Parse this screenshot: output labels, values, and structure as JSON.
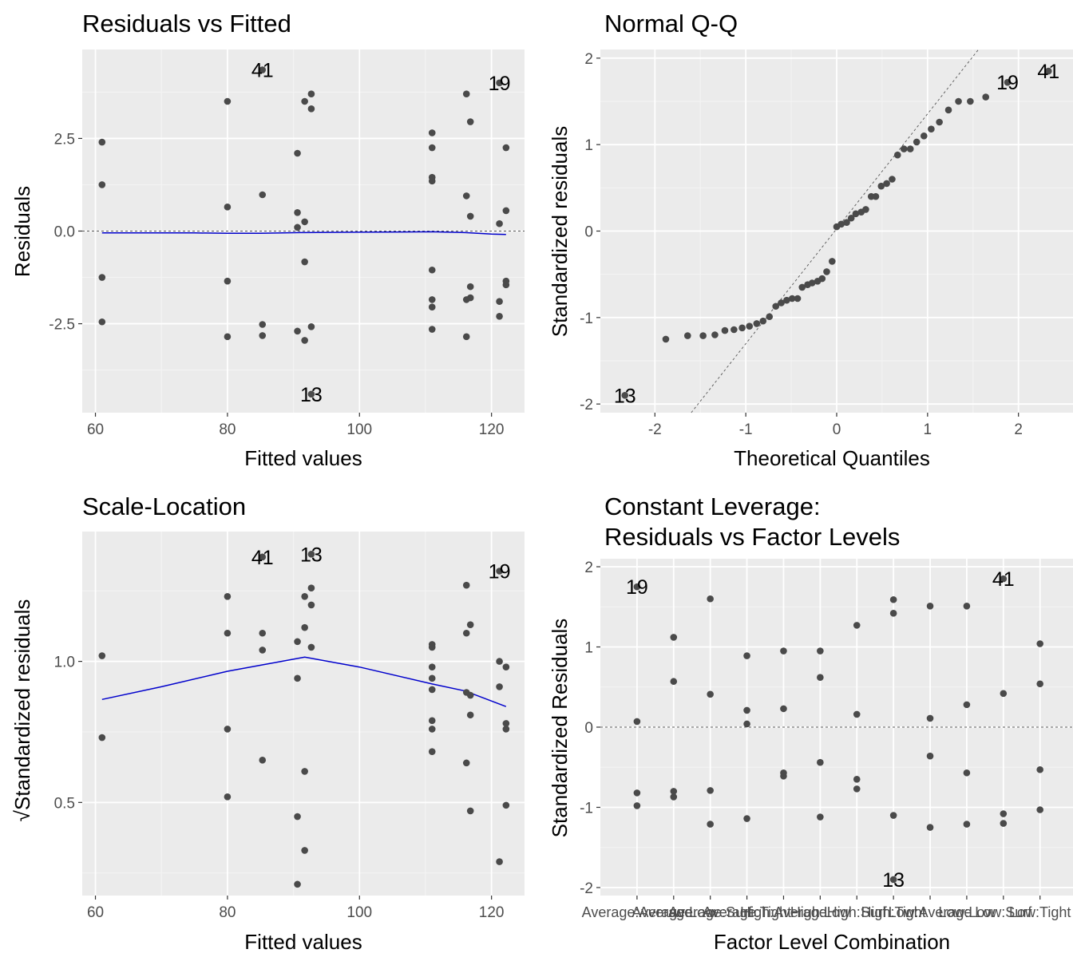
{
  "chart_data": [
    {
      "type": "scatter",
      "id": "p1",
      "title": "Residuals vs Fitted",
      "xlabel": "Fitted values",
      "ylabel": "Residuals",
      "xlim": [
        58,
        125
      ],
      "ylim": [
        -4.9,
        4.9
      ],
      "xticks": [
        60,
        80,
        100,
        120
      ],
      "xtick_labels": [
        "60",
        "80",
        "100",
        "120"
      ],
      "yticks": [
        -2.5,
        0,
        2.5
      ],
      "ytick_labels": [
        "-2.5",
        "0.0",
        "2.5"
      ],
      "hline": 0,
      "points": [
        [
          61,
          2.4
        ],
        [
          61,
          1.25
        ],
        [
          61,
          -1.25
        ],
        [
          61,
          -2.45
        ],
        [
          80,
          3.5
        ],
        [
          80,
          0.65
        ],
        [
          80,
          -1.35
        ],
        [
          80,
          -2.85
        ],
        [
          85.3,
          4.35
        ],
        [
          85.3,
          0.98
        ],
        [
          85.3,
          -2.52
        ],
        [
          85.3,
          -2.82
        ],
        [
          90.6,
          2.1
        ],
        [
          90.6,
          0.5
        ],
        [
          90.6,
          0.1
        ],
        [
          90.6,
          -2.7
        ],
        [
          91.7,
          3.5
        ],
        [
          91.7,
          0.25
        ],
        [
          91.7,
          -0.83
        ],
        [
          91.7,
          -2.95
        ],
        [
          92.7,
          3.7
        ],
        [
          92.7,
          3.3
        ],
        [
          92.7,
          -2.58
        ],
        [
          92.7,
          -4.4
        ],
        [
          111,
          2.65
        ],
        [
          111,
          2.25
        ],
        [
          111,
          1.45
        ],
        [
          111,
          1.35
        ],
        [
          111,
          -1.05
        ],
        [
          111,
          -1.85
        ],
        [
          111,
          -2.05
        ],
        [
          111,
          -2.65
        ],
        [
          116.2,
          3.7
        ],
        [
          116.2,
          0.95
        ],
        [
          116.2,
          -1.85
        ],
        [
          116.2,
          -2.85
        ],
        [
          116.8,
          2.95
        ],
        [
          116.8,
          0.4
        ],
        [
          116.8,
          -1.5
        ],
        [
          116.8,
          -1.8
        ],
        [
          121.2,
          4.0
        ],
        [
          121.2,
          0.2
        ],
        [
          121.2,
          -1.9
        ],
        [
          121.2,
          -2.3
        ],
        [
          122.2,
          2.25
        ],
        [
          122.2,
          0.55
        ],
        [
          122.2,
          -1.35
        ],
        [
          122.2,
          -1.45
        ]
      ],
      "point_labels": [
        {
          "x": 85.3,
          "y": 4.35,
          "text": "41"
        },
        {
          "x": 121.2,
          "y": 4.0,
          "text": "19"
        },
        {
          "x": 92.7,
          "y": -4.4,
          "text": "13"
        }
      ],
      "smooth": [
        [
          61,
          -0.05
        ],
        [
          75,
          -0.05
        ],
        [
          80,
          -0.06
        ],
        [
          85,
          -0.06
        ],
        [
          91,
          -0.04
        ],
        [
          100,
          -0.03
        ],
        [
          111,
          -0.02
        ],
        [
          116,
          -0.04
        ],
        [
          120,
          -0.08
        ],
        [
          122.2,
          -0.09
        ]
      ]
    },
    {
      "type": "scatter",
      "id": "p2",
      "title": "Normal Q-Q",
      "xlabel": "Theoretical Quantiles",
      "ylabel": "Standardized residuals",
      "xlim": [
        -2.6,
        2.6
      ],
      "ylim": [
        -2.1,
        2.1
      ],
      "xticks": [
        -2,
        -1,
        0,
        1,
        2
      ],
      "xtick_labels": [
        "-2",
        "-1",
        "0",
        "1",
        "2"
      ],
      "yticks": [
        -2,
        -1,
        0,
        1,
        2
      ],
      "ytick_labels": [
        "-2",
        "-1",
        "0",
        "1",
        "2"
      ],
      "refline": [
        [
          -1.6,
          -2.1
        ],
        [
          1.56,
          2.1
        ]
      ],
      "points": [
        [
          -2.33,
          -1.9
        ],
        [
          -1.88,
          -1.25
        ],
        [
          -1.64,
          -1.21
        ],
        [
          -1.47,
          -1.21
        ],
        [
          -1.34,
          -1.2
        ],
        [
          -1.23,
          -1.15
        ],
        [
          -1.13,
          -1.14
        ],
        [
          -1.04,
          -1.12
        ],
        [
          -0.96,
          -1.1
        ],
        [
          -0.88,
          -1.07
        ],
        [
          -0.81,
          -1.04
        ],
        [
          -0.74,
          -0.99
        ],
        [
          -0.67,
          -0.87
        ],
        [
          -0.61,
          -0.83
        ],
        [
          -0.55,
          -0.8
        ],
        [
          -0.49,
          -0.78
        ],
        [
          -0.43,
          -0.78
        ],
        [
          -0.38,
          -0.65
        ],
        [
          -0.32,
          -0.62
        ],
        [
          -0.27,
          -0.6
        ],
        [
          -0.21,
          -0.58
        ],
        [
          -0.16,
          -0.55
        ],
        [
          -0.11,
          -0.47
        ],
        [
          -0.05,
          -0.35
        ],
        [
          0.0,
          0.05
        ],
        [
          0.05,
          0.08
        ],
        [
          0.11,
          0.1
        ],
        [
          0.16,
          0.15
        ],
        [
          0.21,
          0.2
        ],
        [
          0.27,
          0.22
        ],
        [
          0.32,
          0.25
        ],
        [
          0.38,
          0.4
        ],
        [
          0.43,
          0.4
        ],
        [
          0.49,
          0.52
        ],
        [
          0.55,
          0.55
        ],
        [
          0.61,
          0.6
        ],
        [
          0.67,
          0.88
        ],
        [
          0.74,
          0.95
        ],
        [
          0.81,
          0.95
        ],
        [
          0.88,
          1.03
        ],
        [
          0.96,
          1.1
        ],
        [
          1.04,
          1.18
        ],
        [
          1.13,
          1.26
        ],
        [
          1.23,
          1.4
        ],
        [
          1.34,
          1.5
        ],
        [
          1.47,
          1.5
        ],
        [
          1.64,
          1.55
        ],
        [
          1.88,
          1.72
        ],
        [
          2.33,
          1.85
        ]
      ],
      "point_labels": [
        {
          "x": 2.33,
          "y": 1.85,
          "text": "41"
        },
        {
          "x": 1.88,
          "y": 1.72,
          "text": "19"
        },
        {
          "x": -2.33,
          "y": -1.9,
          "text": "13"
        }
      ]
    },
    {
      "type": "scatter",
      "id": "p3",
      "title": "Scale-Location",
      "xlabel": "Fitted values",
      "ylabel": "√Standardized residuals",
      "xlim": [
        58,
        125
      ],
      "ylim": [
        0.17,
        1.46
      ],
      "xticks": [
        60,
        80,
        100,
        120
      ],
      "xtick_labels": [
        "60",
        "80",
        "100",
        "120"
      ],
      "yticks": [
        0.5,
        1.0
      ],
      "ytick_labels": [
        "0.5",
        "1.0"
      ],
      "points": [
        [
          61,
          1.02
        ],
        [
          61,
          0.73
        ],
        [
          80,
          1.23
        ],
        [
          80,
          1.1
        ],
        [
          80,
          0.76
        ],
        [
          80,
          0.52
        ],
        [
          85.3,
          1.37
        ],
        [
          85.3,
          1.1
        ],
        [
          85.3,
          1.04
        ],
        [
          85.3,
          0.65
        ],
        [
          90.6,
          1.07
        ],
        [
          90.6,
          0.94
        ],
        [
          90.6,
          0.45
        ],
        [
          90.6,
          0.21
        ],
        [
          91.7,
          1.23
        ],
        [
          91.7,
          1.12
        ],
        [
          91.7,
          0.61
        ],
        [
          91.7,
          0.33
        ],
        [
          92.7,
          1.38
        ],
        [
          92.7,
          1.26
        ],
        [
          92.7,
          1.2
        ],
        [
          92.7,
          1.05
        ],
        [
          111,
          1.06
        ],
        [
          111,
          1.05
        ],
        [
          111,
          0.98
        ],
        [
          111,
          0.94
        ],
        [
          111,
          0.9
        ],
        [
          111,
          0.79
        ],
        [
          111,
          0.76
        ],
        [
          111,
          0.68
        ],
        [
          116.2,
          1.27
        ],
        [
          116.2,
          1.1
        ],
        [
          116.2,
          0.89
        ],
        [
          116.2,
          0.64
        ],
        [
          116.8,
          1.13
        ],
        [
          116.8,
          0.88
        ],
        [
          116.8,
          0.81
        ],
        [
          116.8,
          0.47
        ],
        [
          121.2,
          1.32
        ],
        [
          121.2,
          1.0
        ],
        [
          121.2,
          0.91
        ],
        [
          121.2,
          0.29
        ],
        [
          122.2,
          0.98
        ],
        [
          122.2,
          0.78
        ],
        [
          122.2,
          0.76
        ],
        [
          122.2,
          0.49
        ]
      ],
      "point_labels": [
        {
          "x": 85.3,
          "y": 1.37,
          "text": "41"
        },
        {
          "x": 92.7,
          "y": 1.38,
          "text": "13"
        },
        {
          "x": 121.2,
          "y": 1.32,
          "text": "19"
        }
      ],
      "smooth": [
        [
          61,
          0.865
        ],
        [
          70,
          0.91
        ],
        [
          80,
          0.965
        ],
        [
          91.7,
          1.015
        ],
        [
          100,
          0.98
        ],
        [
          111,
          0.92
        ],
        [
          116,
          0.895
        ],
        [
          122.2,
          0.84
        ]
      ]
    },
    {
      "type": "scatter",
      "id": "p4",
      "title": "Constant Leverage:",
      "subtitle": "Residuals vs Factor Levels",
      "xlabel": "Factor Level Combination",
      "ylabel": "Standardized Residuals",
      "xlim": [
        0.0,
        12.9
      ],
      "ylim": [
        -2.1,
        2.1
      ],
      "xticks": [
        1,
        2,
        3,
        4,
        5,
        6,
        7,
        8,
        9,
        10,
        11,
        12
      ],
      "xtick_labels": [
        "Average:Average",
        "Average:Low",
        "Average:Surf",
        "Average:Tight",
        "High:Average",
        "High:Low",
        "High:Surf",
        "High:Tight",
        "Low:Average",
        "Low:Low",
        "Low:Surf",
        "Low:Tight"
      ],
      "yticks": [
        -2,
        -1,
        0,
        1,
        2
      ],
      "ytick_labels": [
        "-2",
        "-1",
        "0",
        "1",
        "2"
      ],
      "hline": 0,
      "points": [
        [
          1,
          1.75
        ],
        [
          1,
          0.07
        ],
        [
          1,
          -0.82
        ],
        [
          1,
          -0.98
        ],
        [
          2,
          1.12
        ],
        [
          2,
          0.57
        ],
        [
          2,
          -0.8
        ],
        [
          2,
          -0.87
        ],
        [
          3,
          1.6
        ],
        [
          3,
          0.41
        ],
        [
          3,
          -0.79
        ],
        [
          3,
          -1.21
        ],
        [
          4,
          0.89
        ],
        [
          4,
          0.21
        ],
        [
          4,
          0.04
        ],
        [
          4,
          -1.14
        ],
        [
          5,
          0.95
        ],
        [
          5,
          0.23
        ],
        [
          5,
          -0.57
        ],
        [
          5,
          -0.61
        ],
        [
          6,
          0.95
        ],
        [
          6,
          0.62
        ],
        [
          6,
          -0.44
        ],
        [
          6,
          -1.12
        ],
        [
          7,
          1.27
        ],
        [
          7,
          0.16
        ],
        [
          7,
          -0.65
        ],
        [
          7,
          -0.77
        ],
        [
          8,
          1.59
        ],
        [
          8,
          1.42
        ],
        [
          8,
          -1.1
        ],
        [
          8,
          -1.9
        ],
        [
          9,
          1.51
        ],
        [
          9,
          0.11
        ],
        [
          9,
          -0.36
        ],
        [
          9,
          -1.25
        ],
        [
          10,
          1.51
        ],
        [
          10,
          0.28
        ],
        [
          10,
          -0.57
        ],
        [
          10,
          -1.21
        ],
        [
          11,
          1.85
        ],
        [
          11,
          0.42
        ],
        [
          11,
          -1.08
        ],
        [
          11,
          -1.2
        ],
        [
          12,
          1.04
        ],
        [
          12,
          0.54
        ],
        [
          12,
          -0.53
        ],
        [
          12,
          -1.03
        ]
      ],
      "point_labels": [
        {
          "x": 1,
          "y": 1.75,
          "text": "19"
        },
        {
          "x": 11,
          "y": 1.85,
          "text": "41"
        },
        {
          "x": 8,
          "y": -1.9,
          "text": "13"
        }
      ]
    }
  ]
}
